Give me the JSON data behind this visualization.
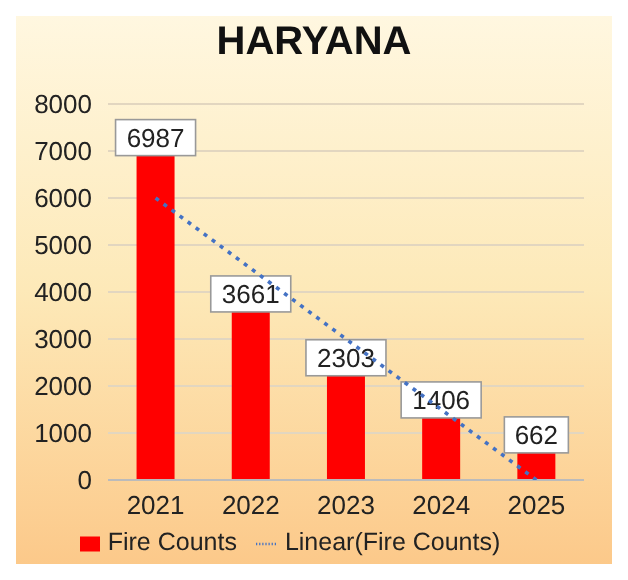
{
  "chart_data": {
    "type": "bar",
    "title": "HARYANA",
    "categories": [
      "2021",
      "2022",
      "2023",
      "2024",
      "2025"
    ],
    "series": [
      {
        "name": "Fire Counts",
        "color": "#ff0000",
        "values": [
          6987,
          3661,
          2303,
          1406,
          662
        ],
        "value_labels": [
          "6987",
          "3661",
          "2303",
          "1406",
          "662"
        ]
      },
      {
        "name": "Linear(Fire Counts)",
        "type": "line",
        "color": "#4472c4",
        "line_style": "dotted",
        "marker": "none",
        "values": [
          6000,
          4500,
          3000,
          1500,
          0
        ]
      }
    ],
    "ylim": [
      0,
      8000
    ],
    "yticks": [
      0,
      1000,
      2000,
      3000,
      4000,
      5000,
      6000,
      7000,
      8000
    ],
    "grid": "y",
    "legend": "bottom"
  }
}
